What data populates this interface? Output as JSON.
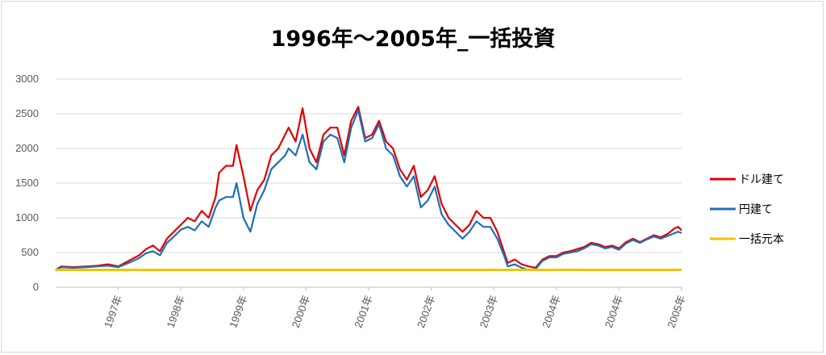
{
  "chart_data": {
    "type": "line",
    "title": "1996年～2005年_一括投資",
    "xlabel": "",
    "ylabel": "",
    "ylim": [
      0,
      3000
    ],
    "yticks": [
      0,
      500,
      1000,
      1500,
      2000,
      2500,
      3000
    ],
    "xtick_labels": [
      "1997年",
      "1998年",
      "1999年",
      "2000年",
      "2001年",
      "2002年",
      "2003年",
      "2004年",
      "2004年",
      "2005年"
    ],
    "grid": true,
    "legend_position": "right",
    "x_range": [
      1996.0,
      2005.0
    ],
    "series": [
      {
        "name": "ドル建て",
        "color": "#e00000",
        "x": [
          1996.0,
          1996.08,
          1996.25,
          1996.45,
          1996.6,
          1996.75,
          1996.9,
          1997.05,
          1997.2,
          1997.3,
          1997.4,
          1997.5,
          1997.6,
          1997.7,
          1997.8,
          1997.9,
          1998.0,
          1998.1,
          1998.2,
          1998.3,
          1998.35,
          1998.45,
          1998.55,
          1998.6,
          1998.7,
          1998.8,
          1998.9,
          1999.0,
          1999.1,
          1999.2,
          1999.3,
          1999.35,
          1999.45,
          1999.55,
          1999.65,
          1999.75,
          1999.85,
          1999.95,
          2000.05,
          2000.15,
          2000.25,
          2000.35,
          2000.45,
          2000.55,
          2000.65,
          2000.75,
          2000.85,
          2000.95,
          2001.05,
          2001.15,
          2001.25,
          2001.35,
          2001.45,
          2001.55,
          2001.65,
          2001.75,
          2001.85,
          2001.95,
          2002.05,
          2002.15,
          2002.25,
          2002.35,
          2002.45,
          2002.5,
          2002.6,
          2002.7,
          2002.8,
          2002.9,
          2003.0,
          2003.1,
          2003.2,
          2003.3,
          2003.4,
          2003.5,
          2003.6,
          2003.7,
          2003.8,
          2003.9,
          2004.0,
          2004.1,
          2004.2,
          2004.3,
          2004.4,
          2004.5,
          2004.6,
          2004.7,
          2004.8,
          2004.9,
          2004.95,
          2005.0
        ],
        "values": [
          250,
          300,
          290,
          300,
          310,
          330,
          300,
          380,
          460,
          550,
          600,
          520,
          700,
          800,
          900,
          1000,
          950,
          1100,
          1000,
          1300,
          1650,
          1750,
          1750,
          2050,
          1600,
          1100,
          1400,
          1550,
          1900,
          2000,
          2200,
          2300,
          2100,
          2580,
          2000,
          1800,
          2200,
          2300,
          2300,
          1900,
          2400,
          2600,
          2150,
          2200,
          2400,
          2100,
          2000,
          1700,
          1550,
          1750,
          1300,
          1400,
          1600,
          1200,
          1000,
          900,
          800,
          900,
          1100,
          1000,
          1000,
          800,
          500,
          350,
          400,
          330,
          300,
          280,
          400,
          450,
          450,
          500,
          520,
          550,
          580,
          640,
          620,
          580,
          600,
          560,
          650,
          700,
          650,
          700,
          750,
          720,
          770,
          850,
          870,
          820
        ]
      },
      {
        "name": "円建て",
        "color": "#1f6fb8",
        "x": [
          1996.0,
          1996.08,
          1996.25,
          1996.45,
          1996.6,
          1996.75,
          1996.9,
          1997.05,
          1997.2,
          1997.3,
          1997.4,
          1997.5,
          1997.6,
          1997.7,
          1997.8,
          1997.9,
          1998.0,
          1998.1,
          1998.2,
          1998.3,
          1998.35,
          1998.45,
          1998.55,
          1998.6,
          1998.7,
          1998.8,
          1998.9,
          1999.0,
          1999.1,
          1999.2,
          1999.3,
          1999.35,
          1999.45,
          1999.55,
          1999.65,
          1999.75,
          1999.85,
          1999.95,
          2000.05,
          2000.15,
          2000.25,
          2000.35,
          2000.45,
          2000.55,
          2000.65,
          2000.75,
          2000.85,
          2000.95,
          2001.05,
          2001.15,
          2001.25,
          2001.35,
          2001.45,
          2001.55,
          2001.65,
          2001.75,
          2001.85,
          2001.95,
          2002.05,
          2002.15,
          2002.25,
          2002.35,
          2002.45,
          2002.5,
          2002.6,
          2002.7,
          2002.8,
          2002.9,
          2003.0,
          2003.1,
          2003.2,
          2003.3,
          2003.4,
          2003.5,
          2003.6,
          2003.7,
          2003.8,
          2003.9,
          2004.0,
          2004.1,
          2004.2,
          2004.3,
          2004.4,
          2004.5,
          2004.6,
          2004.7,
          2004.8,
          2004.9,
          2004.95,
          2005.0
        ],
        "values": [
          240,
          290,
          280,
          290,
          300,
          310,
          290,
          350,
          420,
          490,
          520,
          460,
          640,
          730,
          830,
          870,
          820,
          950,
          870,
          1150,
          1250,
          1300,
          1300,
          1500,
          1000,
          800,
          1200,
          1400,
          1700,
          1800,
          1900,
          2000,
          1900,
          2200,
          1800,
          1700,
          2100,
          2200,
          2150,
          1800,
          2300,
          2550,
          2100,
          2150,
          2350,
          2000,
          1900,
          1600,
          1450,
          1600,
          1150,
          1250,
          1450,
          1050,
          900,
          800,
          700,
          800,
          950,
          870,
          870,
          700,
          450,
          300,
          330,
          280,
          250,
          260,
          380,
          430,
          430,
          480,
          500,
          520,
          560,
          620,
          600,
          560,
          580,
          540,
          630,
          680,
          640,
          690,
          730,
          700,
          740,
          780,
          800,
          780
        ]
      },
      {
        "name": "一括元本",
        "color": "#f2c200",
        "x": [
          1996.0,
          2005.0
        ],
        "values": [
          250,
          250
        ]
      }
    ]
  }
}
